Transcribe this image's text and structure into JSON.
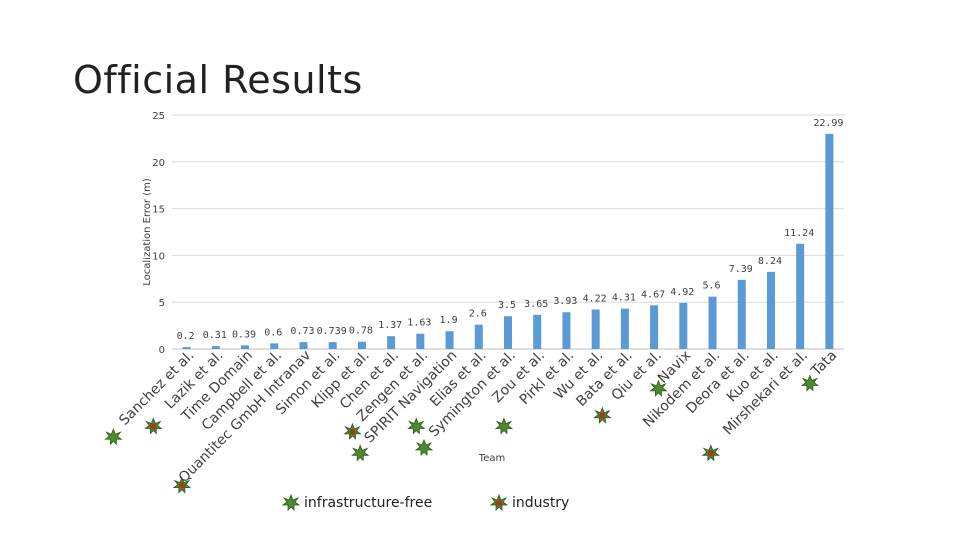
{
  "slide": {
    "title": "Official Results"
  },
  "legend": {
    "infrastructure_free": "infrastructure-free",
    "industry": "industry"
  },
  "colors": {
    "bar": "#5b9bd5",
    "grid": "#d9d9d9",
    "marker_green": "#4d8a2e",
    "marker_red": "#a33a1e",
    "text": "#404040"
  },
  "chart_data": {
    "type": "bar",
    "title": "",
    "xlabel": "Team",
    "ylabel": "Localization Error (m)",
    "ylim": [
      0,
      25
    ],
    "yticks": [
      0,
      5,
      10,
      15,
      20,
      25
    ],
    "grid": true,
    "categories": [
      "Sanchez et al.",
      "Lazik et al.",
      "Time Domain",
      "Campbell et al.",
      "Quantitec GmbH Intranav",
      "Simon et al.",
      "Klipp et al.",
      "Chen et al.",
      "Zengen et al.",
      "SPIRIT Navigation",
      "Elias et al.",
      "Symington et al.",
      "Zou et al.",
      "Pirkl et al.",
      "Wu et al.",
      "Bata et al.",
      "Qiu et al.",
      "Navix",
      "Nikodem et al.",
      "Deora et al.",
      "Kuo et al.",
      "Mirshekari et al.",
      "Tata"
    ],
    "values": [
      0.2,
      0.31,
      0.39,
      0.6,
      0.73,
      0.739,
      0.78,
      1.37,
      1.63,
      1.9,
      2.6,
      3.5,
      3.65,
      3.93,
      4.22,
      4.31,
      4.67,
      4.92,
      5.6,
      7.39,
      8.24,
      11.24,
      22.99
    ],
    "value_labels": [
      "0.2",
      "0.31",
      "0.39",
      "0.6",
      "0.73",
      "0.739",
      "0.78",
      "1.37",
      "1.63",
      "1.9",
      "2.6",
      "3.5",
      "3.65",
      "3.93",
      "4.22",
      "4.31",
      "4.67",
      "4.92",
      "5.6",
      "7.39",
      "8.24",
      "11.24",
      "22.99"
    ],
    "markers": [
      {
        "category": "Sanchez et al.",
        "type": "infrastructure-free"
      },
      {
        "category": "Lazik et al.",
        "type": "industry"
      },
      {
        "category": "Quantitec GmbH Intranav",
        "type": "industry"
      },
      {
        "category": "Zengen et al.",
        "type": "industry"
      },
      {
        "category": "SPIRIT Navigation",
        "type": "infrastructure-free"
      },
      {
        "category": "Elias et al.",
        "type": "infrastructure-free"
      },
      {
        "category": "Symington et al.",
        "type": "infrastructure-free"
      },
      {
        "category": "Pirkl et al.",
        "type": "infrastructure-free"
      },
      {
        "category": "Qiu et al.",
        "type": "industry"
      },
      {
        "category": "Navix",
        "type": "infrastructure-free"
      },
      {
        "category": "Mirshekari et al.",
        "type": "industry"
      },
      {
        "category": "Tata",
        "type": "infrastructure-free"
      }
    ]
  }
}
